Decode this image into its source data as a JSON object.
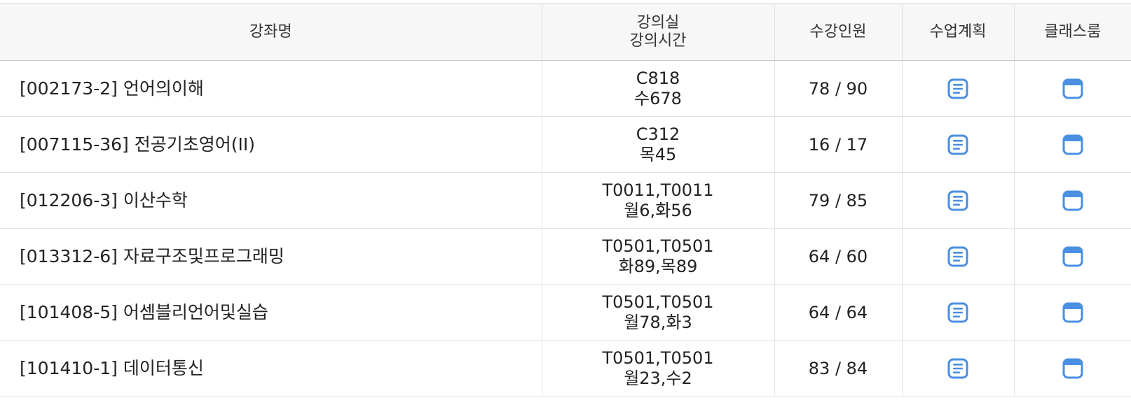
{
  "header": {
    "course_name": "강좌명",
    "room_line1": "강의실",
    "room_line2": "강의시간",
    "enrollment": "수강인원",
    "plan": "수업계획",
    "classroom": "클래스룸"
  },
  "colors": {
    "icon_blue": "#4a8fe2"
  },
  "icons": {
    "plan": "document-lines-icon",
    "classroom": "window-icon"
  },
  "courses": [
    {
      "name": "[002173-2] 언어의이해",
      "room": "C818",
      "time": "수678",
      "enrollment": "78 / 90"
    },
    {
      "name": "[007115-36] 전공기초영어(II)",
      "room": "C312",
      "time": "목45",
      "enrollment": "16 / 17"
    },
    {
      "name": "[012206-3] 이산수학",
      "room": "T0011,T0011",
      "time": "월6,화56",
      "enrollment": "79 / 85"
    },
    {
      "name": "[013312-6] 자료구조및프로그래밍",
      "room": "T0501,T0501",
      "time": "화89,목89",
      "enrollment": "64 / 60"
    },
    {
      "name": "[101408-5] 어셈블리언어및실습",
      "room": "T0501,T0501",
      "time": "월78,화3",
      "enrollment": "64 / 64"
    },
    {
      "name": "[101410-1] 데이터통신",
      "room": "T0501,T0501",
      "time": "월23,수2",
      "enrollment": "83 / 84"
    }
  ]
}
